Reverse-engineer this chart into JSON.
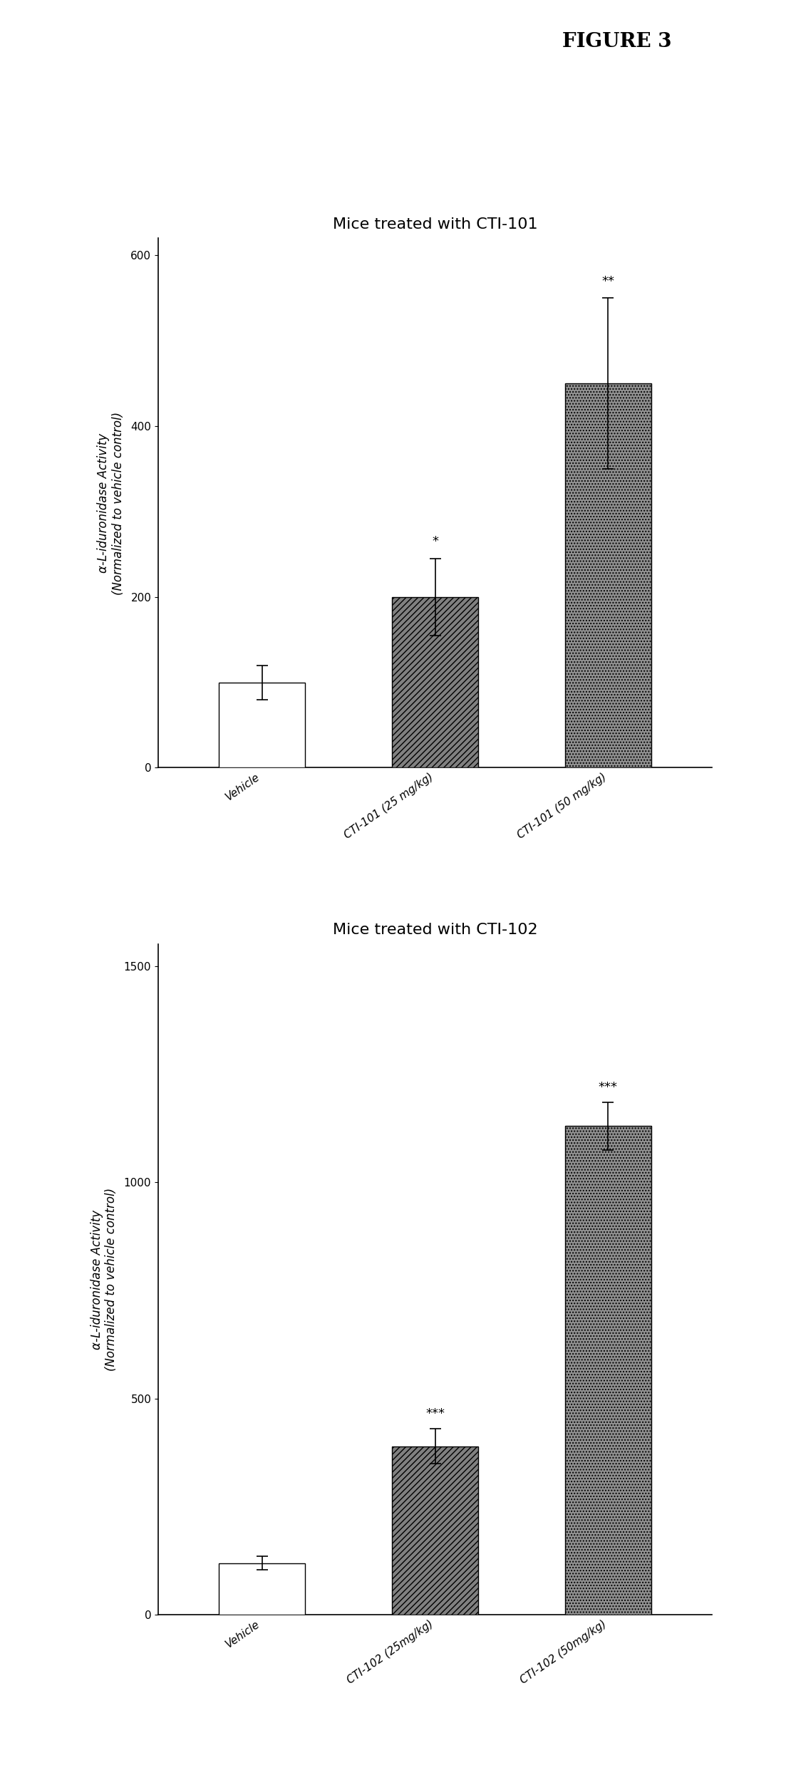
{
  "figure_title": "FIGURE 3",
  "chart1": {
    "title": "Mice treated with CTI-101",
    "categories": [
      "Vehicle",
      "CTI-101 (25 mg/kg)",
      "CTI-101 (50 mg/kg)"
    ],
    "values": [
      100,
      200,
      450
    ],
    "errors": [
      20,
      45,
      100
    ],
    "bar_colors": [
      "#ffffff",
      "#808080",
      "#909090"
    ],
    "bar_hatches": [
      "",
      "////",
      "...."
    ],
    "significance": [
      "",
      "*",
      "**"
    ],
    "ylabel": "α-L-iduronidase Activity\n(Normalized to vehicle control)",
    "ylim": [
      0,
      620
    ],
    "yticks": [
      0,
      200,
      400,
      600
    ]
  },
  "chart2": {
    "title": "Mice treated with CTI-102",
    "categories": [
      "Vehicle",
      "CTI-102 (25mg/kg)",
      "CTI-102 (50mg/kg)"
    ],
    "values": [
      120,
      390,
      1130
    ],
    "errors": [
      15,
      40,
      55
    ],
    "bar_colors": [
      "#ffffff",
      "#808080",
      "#909090"
    ],
    "bar_hatches": [
      "",
      "////",
      "...."
    ],
    "significance": [
      "",
      "***",
      "***"
    ],
    "ylabel": "α-L-iduronidase Activity\n(Normalized to vehicle control)",
    "ylim": [
      0,
      1550
    ],
    "yticks": [
      0,
      500,
      1000,
      1500
    ]
  },
  "background_color": "#ffffff",
  "figure_title_fontsize": 20,
  "title_fontsize": 16,
  "axis_fontsize": 12,
  "tick_fontsize": 11,
  "sig_fontsize": 13
}
